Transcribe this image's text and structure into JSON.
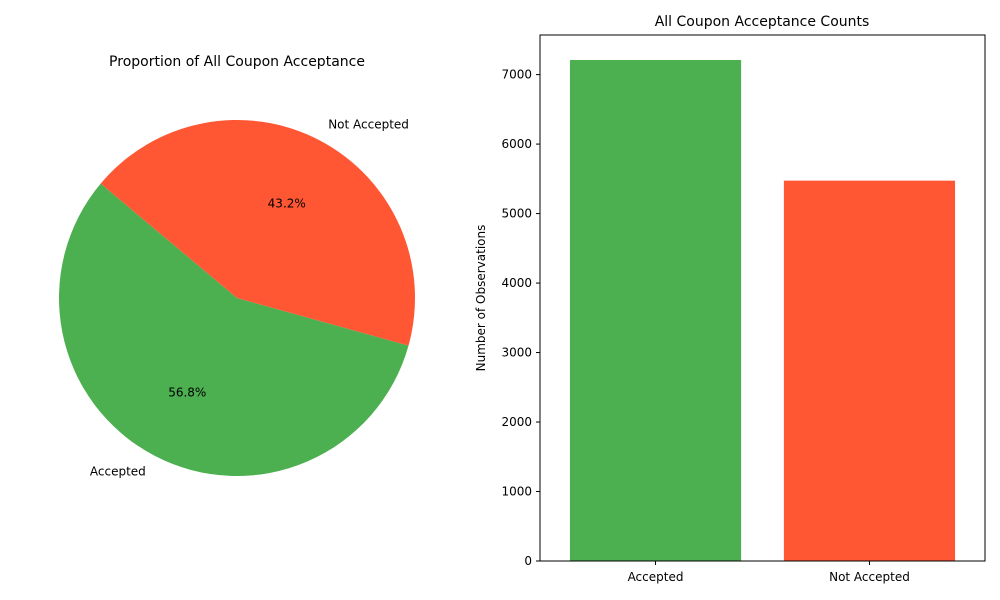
{
  "chart_data": [
    {
      "type": "pie",
      "title": "Proportion of All Coupon Acceptance",
      "categories": [
        "Accepted",
        "Not Accepted"
      ],
      "values": [
        56.8,
        43.2
      ],
      "value_labels": [
        "56.8%",
        "43.2%"
      ],
      "colors": [
        "#4caf50",
        "#ff5733"
      ],
      "start_angle_deg": 140,
      "direction": "counterclockwise"
    },
    {
      "type": "bar",
      "title": "All Coupon Acceptance Counts",
      "xlabel": "",
      "ylabel": "Number of Observations",
      "categories": [
        "Accepted",
        "Not Accepted"
      ],
      "values": [
        7210,
        5474
      ],
      "colors": [
        "#4caf50",
        "#ff5733"
      ],
      "ylim": [
        0,
        7570
      ],
      "yticks": [
        0,
        1000,
        2000,
        3000,
        4000,
        5000,
        6000,
        7000
      ],
      "grid": false
    }
  ]
}
